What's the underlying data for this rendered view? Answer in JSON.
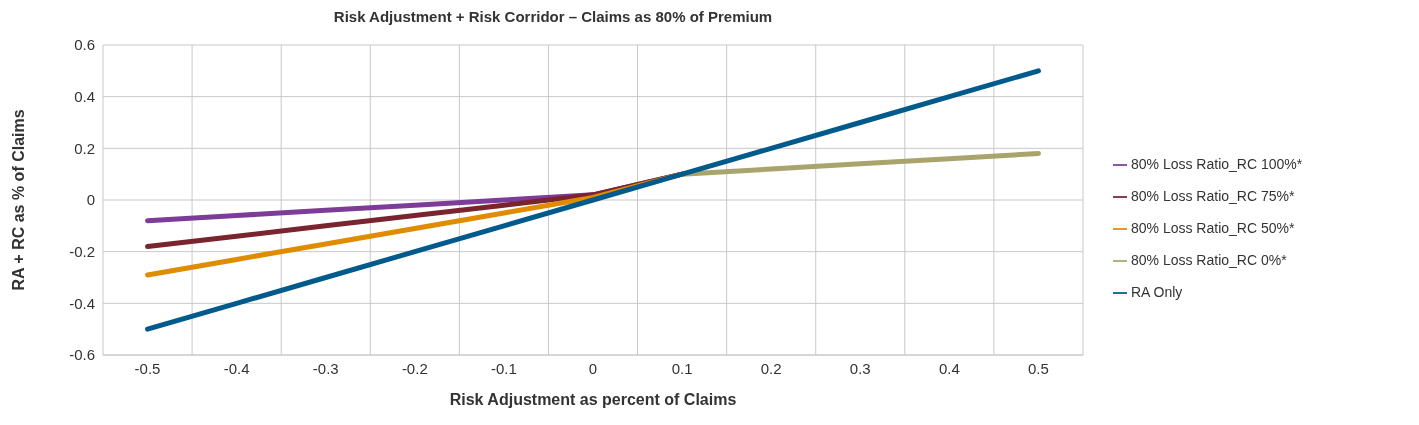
{
  "chart_data": {
    "type": "line",
    "title": "Risk Adjustment + Risk Corridor – Claims as 80% of Premium",
    "xlabel": "Risk Adjustment as percent of Claims",
    "ylabel": "RA + RC as % of Claims",
    "categories": [
      "-0.5",
      "-0.4",
      "-0.3",
      "-0.2",
      "-0.1",
      "0",
      "0.1",
      "0.2",
      "0.3",
      "0.4",
      "0.5"
    ],
    "series": [
      {
        "name": "80% Loss Ratio_RC 100%*",
        "color": "#7d3c98",
        "values": [
          -0.08,
          -0.06,
          -0.04,
          -0.02,
          0,
          0.02,
          0.1,
          null,
          null,
          null,
          null
        ]
      },
      {
        "name": "80% Loss Ratio_RC 75%*",
        "color": "#7a2430",
        "values": [
          -0.18,
          -0.14,
          -0.1,
          -0.06,
          -0.02,
          0.02,
          0.1,
          null,
          null,
          null,
          null
        ]
      },
      {
        "name": "80% Loss Ratio_RC 50%*",
        "color": "#e08c00",
        "values": [
          -0.29,
          -0.23,
          -0.17,
          -0.11,
          -0.05,
          0.01,
          0.1,
          null,
          null,
          null,
          null
        ]
      },
      {
        "name": "80% Loss Ratio_RC 0%*",
        "color": "#a8a46c",
        "values": [
          null,
          null,
          null,
          null,
          null,
          null,
          0.1,
          0.12,
          0.14,
          0.16,
          0.18
        ]
      },
      {
        "name": "RA Only",
        "color": "#005a8c",
        "values": [
          -0.5,
          -0.4,
          -0.3,
          -0.2,
          -0.1,
          0,
          0.1,
          0.2,
          0.3,
          0.4,
          0.5
        ]
      }
    ],
    "ylim": [
      -0.6,
      0.6
    ],
    "yticks": [
      -0.6,
      -0.4,
      -0.2,
      0,
      0.2,
      0.4,
      0.6
    ],
    "grid": true,
    "legend": "right",
    "marker": "none",
    "line_style": "solid"
  }
}
